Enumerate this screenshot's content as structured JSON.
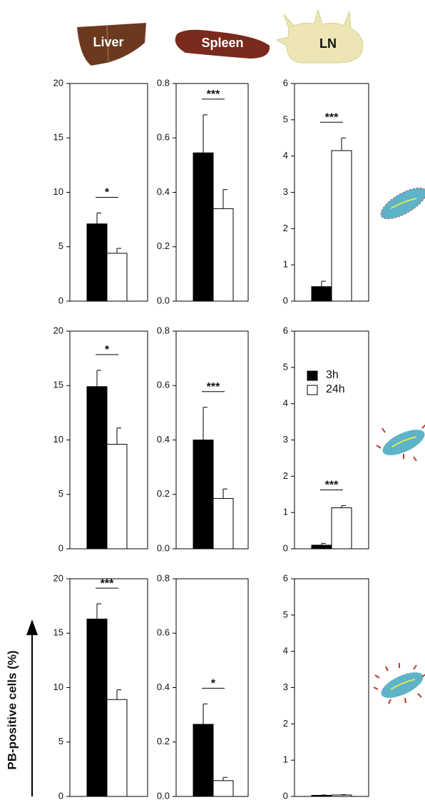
{
  "organs": [
    "Liver",
    "Spleen",
    "LN"
  ],
  "y_label": "PB-positive cells (%)",
  "chart_data": [
    {
      "type": "bar",
      "ylim": [
        0,
        20
      ],
      "yticks": [
        0,
        5,
        10,
        15,
        20
      ],
      "annotation": "*",
      "series": [
        {
          "color": "#000000",
          "values": [
            7.1
          ],
          "errors": [
            1.0
          ]
        },
        {
          "color": "#ffffff",
          "values": [
            4.4
          ],
          "errors": [
            0.45
          ]
        }
      ]
    },
    {
      "type": "bar",
      "ylim": [
        0,
        0.8
      ],
      "yticks": [
        {
          "value": 0,
          "label": "0.0"
        },
        0.2,
        0.4,
        0.6,
        0.8
      ],
      "annotation": "***",
      "series": [
        {
          "color": "#000000",
          "values": [
            0.545
          ],
          "errors": [
            0.14
          ]
        },
        {
          "color": "#ffffff",
          "values": [
            0.34
          ],
          "errors": [
            0.07
          ]
        }
      ]
    },
    {
      "type": "bar",
      "ylim": [
        0,
        6
      ],
      "yticks": [
        0,
        1,
        2,
        3,
        4,
        5,
        6
      ],
      "annotation": "***",
      "series": [
        {
          "color": "#000000",
          "values": [
            0.4
          ],
          "errors": [
            0.15
          ]
        },
        {
          "color": "#ffffff",
          "values": [
            4.15
          ],
          "errors": [
            0.35
          ]
        }
      ]
    },
    {
      "type": "bar",
      "ylim": [
        0,
        20
      ],
      "yticks": [
        0,
        5,
        10,
        15,
        20
      ],
      "annotation": "*",
      "series": [
        {
          "color": "#000000",
          "values": [
            14.9
          ],
          "errors": [
            1.5
          ]
        },
        {
          "color": "#ffffff",
          "values": [
            9.6
          ],
          "errors": [
            1.5
          ]
        }
      ]
    },
    {
      "type": "bar",
      "ylim": [
        0,
        0.8
      ],
      "yticks": [
        {
          "value": 0,
          "label": "0.0"
        },
        0.2,
        0.4,
        0.6,
        0.8
      ],
      "annotation": "***",
      "series": [
        {
          "color": "#000000",
          "values": [
            0.4
          ],
          "errors": [
            0.12
          ]
        },
        {
          "color": "#ffffff",
          "values": [
            0.185
          ],
          "errors": [
            0.035
          ]
        }
      ]
    },
    {
      "type": "bar",
      "ylim": [
        0,
        6
      ],
      "yticks": [
        0,
        1,
        2,
        3,
        4,
        5,
        6
      ],
      "annotation": "***",
      "legend": "upper right",
      "series": [
        {
          "name": "3h",
          "color": "#000000",
          "values": [
            0.1
          ],
          "errors": [
            0.05
          ]
        },
        {
          "name": "24h",
          "color": "#ffffff",
          "values": [
            1.13
          ],
          "errors": [
            0.06
          ]
        }
      ]
    },
    {
      "type": "bar",
      "ylim": [
        0,
        20
      ],
      "yticks": [
        0,
        5,
        10,
        15,
        20
      ],
      "annotation": "***",
      "series": [
        {
          "color": "#000000",
          "values": [
            16.3
          ],
          "errors": [
            1.4
          ]
        },
        {
          "color": "#ffffff",
          "values": [
            8.9
          ],
          "errors": [
            0.9
          ]
        }
      ]
    },
    {
      "type": "bar",
      "ylim": [
        0,
        0.8
      ],
      "yticks": [
        {
          "value": 0,
          "label": "0.0"
        },
        0.2,
        0.4,
        0.6,
        0.8
      ],
      "annotation": "*",
      "series": [
        {
          "color": "#000000",
          "values": [
            0.265
          ],
          "errors": [
            0.075
          ]
        },
        {
          "color": "#ffffff",
          "values": [
            0.058
          ],
          "errors": [
            0.012
          ]
        }
      ]
    },
    {
      "type": "bar",
      "ylim": [
        0,
        6
      ],
      "yticks": [
        0,
        1,
        2,
        3,
        4,
        5,
        6
      ],
      "series": [
        {
          "color": "#000000",
          "values": [
            0.03
          ],
          "errors": [
            0.01
          ]
        },
        {
          "color": "#ffffff",
          "values": [
            0.04
          ],
          "errors": [
            0.01
          ]
        }
      ]
    }
  ]
}
